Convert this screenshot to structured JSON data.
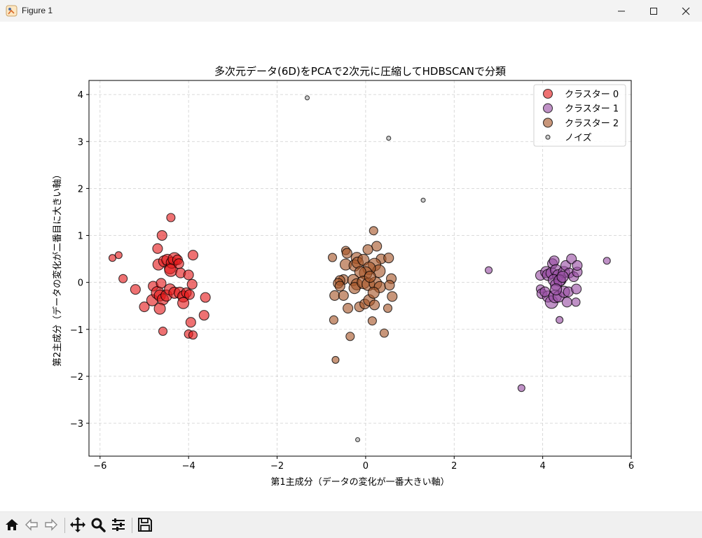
{
  "window": {
    "title": "Figure 1",
    "icon": "matplotlib-figure-icon",
    "controls": [
      "minimize-icon",
      "maximize-icon",
      "close-icon"
    ]
  },
  "toolbar": {
    "buttons": [
      "home-icon",
      "back-arrow-icon",
      "forward-arrow-icon",
      "pan-move-icon",
      "zoom-magnifier-icon",
      "configure-subplots-icon",
      "save-disk-icon"
    ]
  },
  "chart_data": {
    "type": "scatter",
    "title": "多次元データ(6D)をPCAで2次元に圧縮してHDBSCANで分類",
    "xlabel": "第1主成分（データの変化が一番大きい軸）",
    "ylabel": "第2主成分（データの変化が二番目に大きい軸）",
    "xlim": [
      -6.25,
      6.0
    ],
    "ylim": [
      -3.7,
      4.3
    ],
    "xticks": [
      -6,
      -4,
      -2,
      0,
      2,
      4,
      6
    ],
    "yticks": [
      -3,
      -2,
      -1,
      0,
      1,
      2,
      3,
      4
    ],
    "xtick_labels": [
      "−6",
      "−4",
      "−2",
      "0",
      "2",
      "4",
      "6"
    ],
    "ytick_labels": [
      "−3",
      "−2",
      "−1",
      "0",
      "1",
      "2",
      "3",
      "4"
    ],
    "grid": true,
    "legend_position": "top-right",
    "series": [
      {
        "name": "クラスター 0",
        "color": "#e41a1c",
        "points": [
          [
            -4.4,
            1.38
          ],
          [
            -4.6,
            1.0
          ],
          [
            -4.7,
            0.72
          ],
          [
            -5.72,
            0.52
          ],
          [
            -5.58,
            0.58
          ],
          [
            -5.48,
            0.08
          ],
          [
            -5.2,
            -0.15
          ],
          [
            -5.0,
            -0.52
          ],
          [
            -4.82,
            -0.38
          ],
          [
            -4.8,
            -0.08
          ],
          [
            -4.7,
            -0.22
          ],
          [
            -4.62,
            -0.02
          ],
          [
            -4.68,
            0.38
          ],
          [
            -4.55,
            0.45
          ],
          [
            -4.48,
            0.48
          ],
          [
            -4.42,
            0.3
          ],
          [
            -4.38,
            0.42
          ],
          [
            -4.32,
            0.5
          ],
          [
            -4.4,
            0.26
          ],
          [
            -4.25,
            0.48
          ],
          [
            -4.22,
            0.4
          ],
          [
            -4.18,
            0.2
          ],
          [
            -4.0,
            0.16
          ],
          [
            -3.9,
            0.58
          ],
          [
            -4.65,
            -0.28
          ],
          [
            -4.58,
            -0.36
          ],
          [
            -4.5,
            -0.28
          ],
          [
            -4.42,
            -0.15
          ],
          [
            -4.32,
            -0.22
          ],
          [
            -4.2,
            -0.22
          ],
          [
            -4.12,
            -0.3
          ],
          [
            -4.05,
            -0.22
          ],
          [
            -3.98,
            -0.26
          ],
          [
            -3.92,
            -0.04
          ],
          [
            -4.12,
            -0.44
          ],
          [
            -4.65,
            -0.56
          ],
          [
            -3.62,
            -0.32
          ],
          [
            -3.65,
            -0.7
          ],
          [
            -3.95,
            -0.85
          ],
          [
            -4.58,
            -1.04
          ],
          [
            -4.0,
            -1.1
          ],
          [
            -3.9,
            -1.12
          ]
        ],
        "sizes": [
          6,
          7,
          7,
          5,
          5,
          6,
          7,
          7,
          8,
          7,
          9,
          7,
          8,
          8,
          8,
          8,
          8,
          9,
          9,
          7,
          7,
          7,
          7,
          7,
          8,
          8,
          8,
          8,
          8,
          8,
          8,
          7,
          7,
          7,
          8,
          8,
          7,
          7,
          7,
          6,
          6,
          6
        ]
      },
      {
        "name": "クラスター 1",
        "color": "#984ea3",
        "points": [
          [
            2.78,
            0.26
          ],
          [
            5.45,
            0.46
          ],
          [
            3.52,
            -2.25
          ],
          [
            4.38,
            -0.8
          ],
          [
            3.95,
            -0.14
          ],
          [
            3.98,
            -0.24
          ],
          [
            3.95,
            0.15
          ],
          [
            4.08,
            0.22
          ],
          [
            4.12,
            0.16
          ],
          [
            4.2,
            0.2
          ],
          [
            4.22,
            0.4
          ],
          [
            4.26,
            0.46
          ],
          [
            4.3,
            0.26
          ],
          [
            4.35,
            0.15
          ],
          [
            4.4,
            0.05
          ],
          [
            4.48,
            0.22
          ],
          [
            4.52,
            0.36
          ],
          [
            4.6,
            0.2
          ],
          [
            4.65,
            0.5
          ],
          [
            4.7,
            0.12
          ],
          [
            4.78,
            0.22
          ],
          [
            4.78,
            0.36
          ],
          [
            4.25,
            0.05
          ],
          [
            4.3,
            -0.05
          ],
          [
            4.38,
            0.04
          ],
          [
            4.45,
            0.12
          ],
          [
            4.12,
            -0.3
          ],
          [
            4.2,
            -0.42
          ],
          [
            4.28,
            -0.3
          ],
          [
            4.36,
            -0.3
          ],
          [
            4.48,
            -0.2
          ],
          [
            4.58,
            -0.2
          ],
          [
            4.76,
            -0.14
          ],
          [
            4.55,
            -0.42
          ],
          [
            4.75,
            -0.42
          ],
          [
            4.05,
            -0.2
          ],
          [
            4.3,
            -0.15
          ]
        ],
        "sizes": [
          5,
          5,
          5,
          5,
          6,
          7,
          7,
          8,
          8,
          8,
          7,
          7,
          8,
          8,
          8,
          8,
          7,
          7,
          7,
          7,
          7,
          7,
          8,
          8,
          8,
          8,
          8,
          9,
          9,
          8,
          8,
          7,
          7,
          7,
          6,
          7,
          8
        ]
      },
      {
        "name": "クラスター 2",
        "color": "#a65628",
        "points": [
          [
            0.18,
            1.1
          ],
          [
            0.25,
            0.77
          ],
          [
            0.05,
            0.7
          ],
          [
            -0.45,
            0.68
          ],
          [
            -0.42,
            0.62
          ],
          [
            -0.75,
            0.53
          ],
          [
            -0.2,
            0.52
          ],
          [
            0.35,
            0.5
          ],
          [
            0.52,
            0.52
          ],
          [
            -0.45,
            0.38
          ],
          [
            -0.25,
            0.36
          ],
          [
            -0.18,
            0.42
          ],
          [
            -0.05,
            0.48
          ],
          [
            0.2,
            0.38
          ],
          [
            0.3,
            0.24
          ],
          [
            0.08,
            0.3
          ],
          [
            0.0,
            0.2
          ],
          [
            -0.12,
            0.22
          ],
          [
            -0.5,
            0.06
          ],
          [
            -0.58,
            0.04
          ],
          [
            -0.62,
            -0.02
          ],
          [
            -0.28,
            0.05
          ],
          [
            -0.2,
            -0.04
          ],
          [
            -0.25,
            -0.12
          ],
          [
            -0.05,
            0.0
          ],
          [
            0.06,
            -0.04
          ],
          [
            0.22,
            -0.02
          ],
          [
            0.32,
            -0.1
          ],
          [
            0.1,
            0.12
          ],
          [
            0.58,
            0.08
          ],
          [
            0.54,
            -0.06
          ],
          [
            -0.7,
            -0.28
          ],
          [
            -0.5,
            -0.28
          ],
          [
            -0.58,
            -0.08
          ],
          [
            -0.4,
            -0.55
          ],
          [
            -0.14,
            -0.52
          ],
          [
            -0.02,
            -0.46
          ],
          [
            0.08,
            -0.38
          ],
          [
            0.18,
            -0.22
          ],
          [
            0.2,
            -0.48
          ],
          [
            0.6,
            -0.3
          ],
          [
            0.5,
            -0.55
          ],
          [
            -0.72,
            -0.8
          ],
          [
            0.15,
            -0.82
          ],
          [
            -0.35,
            -1.15
          ],
          [
            0.42,
            -1.08
          ],
          [
            -0.68,
            -1.65
          ]
        ],
        "sizes": [
          6,
          7,
          7,
          6,
          7,
          6,
          8,
          7,
          7,
          8,
          8,
          8,
          8,
          9,
          9,
          9,
          9,
          8,
          7,
          7,
          7,
          8,
          8,
          8,
          9,
          9,
          9,
          8,
          8,
          7,
          7,
          7,
          7,
          7,
          7,
          7,
          7,
          8,
          8,
          7,
          7,
          6,
          6,
          6,
          6,
          6,
          5
        ]
      },
      {
        "name": "ノイズ",
        "color": "#999999",
        "points": [
          [
            -1.32,
            3.93
          ],
          [
            0.52,
            3.07
          ],
          [
            1.3,
            1.75
          ],
          [
            -0.18,
            -3.35
          ]
        ],
        "sizes": [
          3,
          3,
          3,
          3
        ]
      }
    ]
  }
}
